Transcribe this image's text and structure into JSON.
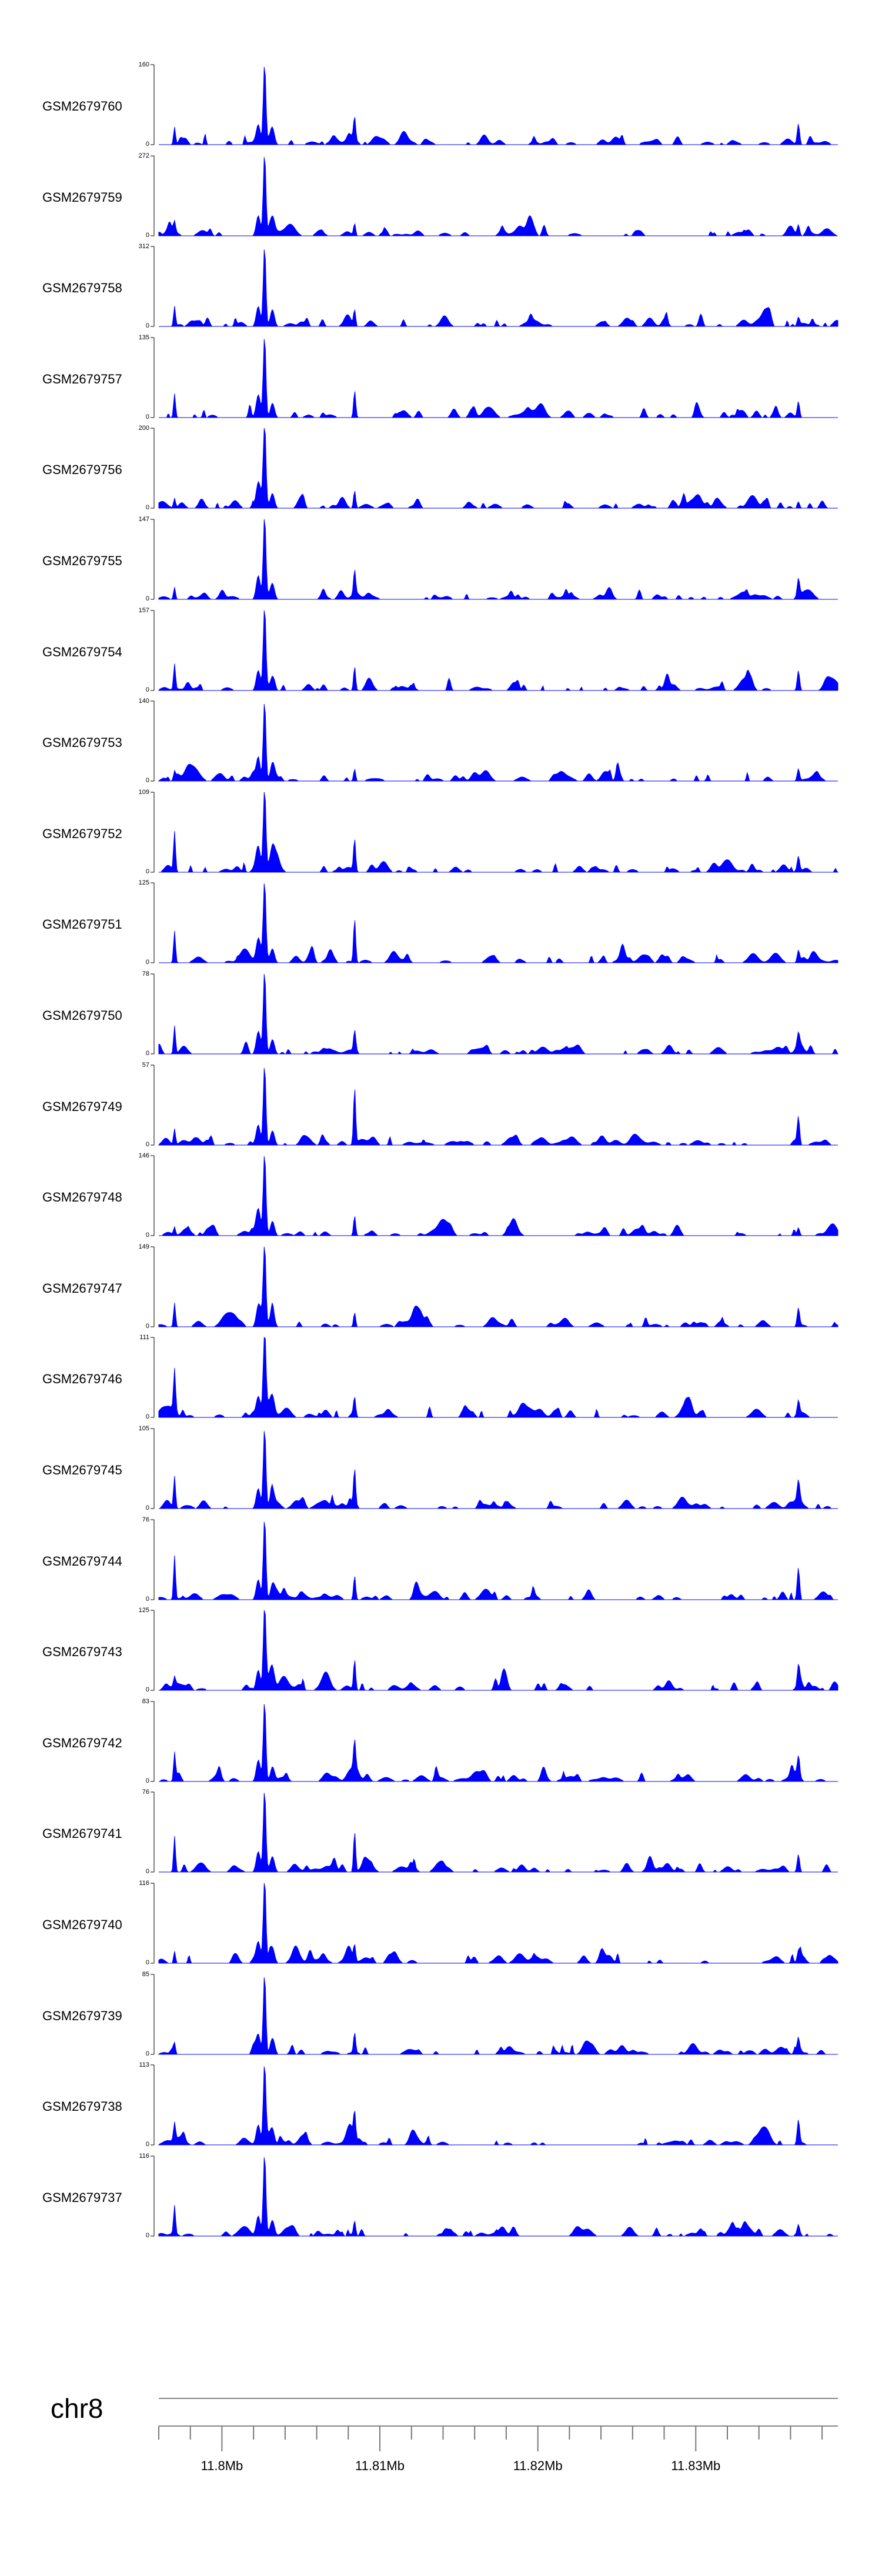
{
  "chart_data": {
    "type": "area",
    "chromosome": "chr8",
    "x_range_mb": [
      11.796,
      11.839
    ],
    "x_ticks": [
      {
        "pos": 11.8,
        "label": "11.8Mb"
      },
      {
        "pos": 11.81,
        "label": "11.81Mb"
      },
      {
        "pos": 11.82,
        "label": "11.82Mb"
      },
      {
        "pos": 11.83,
        "label": "11.83Mb"
      }
    ],
    "minor_tick_step_mb": 0.002,
    "color": "#0000ff",
    "peaks_mb": {
      "main": 11.8027,
      "secondary": 11.8084,
      "left": 11.797,
      "right": 11.8365
    },
    "tracks": [
      {
        "name": "GSM2679760",
        "ymax": 160,
        "ymin": 0,
        "peaks": {
          "main": 1.0,
          "secondary": 0.28,
          "left": 0.22,
          "right": 0.26
        },
        "seed": 11
      },
      {
        "name": "GSM2679759",
        "ymax": 272,
        "ymin": 0,
        "peaks": {
          "main": 1.0,
          "secondary": 0.15,
          "left": 0.12,
          "right": 0.13
        },
        "seed": 12
      },
      {
        "name": "GSM2679758",
        "ymax": 312,
        "ymin": 0,
        "peaks": {
          "main": 1.0,
          "secondary": 0.2,
          "left": 0.25,
          "right": 0.1
        },
        "seed": 13
      },
      {
        "name": "GSM2679757",
        "ymax": 135,
        "ymin": 0,
        "peaks": {
          "main": 1.0,
          "secondary": 0.32,
          "left": 0.3,
          "right": 0.2
        },
        "seed": 14
      },
      {
        "name": "GSM2679756",
        "ymax": 200,
        "ymin": 0,
        "peaks": {
          "main": 1.0,
          "secondary": 0.22,
          "left": 0.12,
          "right": 0.08
        },
        "seed": 15
      },
      {
        "name": "GSM2679755",
        "ymax": 147,
        "ymin": 0,
        "peaks": {
          "main": 1.0,
          "secondary": 0.3,
          "left": 0.15,
          "right": 0.22
        },
        "seed": 16
      },
      {
        "name": "GSM2679754",
        "ymax": 157,
        "ymin": 0,
        "peaks": {
          "main": 1.0,
          "secondary": 0.3,
          "left": 0.32,
          "right": 0.25
        },
        "seed": 17
      },
      {
        "name": "GSM2679753",
        "ymax": 140,
        "ymin": 0,
        "peaks": {
          "main": 1.0,
          "secondary": 0.15,
          "left": 0.1,
          "right": 0.15
        },
        "seed": 18
      },
      {
        "name": "GSM2679752",
        "ymax": 109,
        "ymin": 0,
        "peaks": {
          "main": 1.0,
          "secondary": 0.4,
          "left": 0.5,
          "right": 0.18
        },
        "seed": 19
      },
      {
        "name": "GSM2679751",
        "ymax": 125,
        "ymin": 0,
        "peaks": {
          "main": 0.95,
          "secondary": 0.55,
          "left": 0.4,
          "right": 0.15
        },
        "seed": 20
      },
      {
        "name": "GSM2679750",
        "ymax": 78,
        "ymin": 0,
        "peaks": {
          "main": 1.0,
          "secondary": 0.25,
          "left": 0.35,
          "right": 0.15
        },
        "seed": 21
      },
      {
        "name": "GSM2679749",
        "ymax": 57,
        "ymin": 0,
        "peaks": {
          "main": 1.0,
          "secondary": 0.7,
          "left": 0.2,
          "right": 0.35
        },
        "seed": 22
      },
      {
        "name": "GSM2679748",
        "ymax": 146,
        "ymin": 0,
        "peaks": {
          "main": 1.0,
          "secondary": 0.25,
          "left": 0.1,
          "right": 0.1
        },
        "seed": 23
      },
      {
        "name": "GSM2679747",
        "ymax": 149,
        "ymin": 0,
        "peaks": {
          "main": 1.0,
          "secondary": 0.18,
          "left": 0.3,
          "right": 0.22
        },
        "seed": 24
      },
      {
        "name": "GSM2679746",
        "ymax": 111,
        "ymin": 0,
        "peaks": {
          "main": 1.0,
          "secondary": 0.22,
          "left": 0.48,
          "right": 0.18
        },
        "seed": 25
      },
      {
        "name": "GSM2679745",
        "ymax": 105,
        "ymin": 0,
        "peaks": {
          "main": 1.0,
          "secondary": 0.45,
          "left": 0.4,
          "right": 0.25
        },
        "seed": 26
      },
      {
        "name": "GSM2679744",
        "ymax": 76,
        "ymin": 0,
        "peaks": {
          "main": 1.0,
          "secondary": 0.3,
          "left": 0.55,
          "right": 0.4
        },
        "seed": 27
      },
      {
        "name": "GSM2679743",
        "ymax": 125,
        "ymin": 0,
        "peaks": {
          "main": 1.0,
          "secondary": 0.38,
          "left": 0.1,
          "right": 0.25
        },
        "seed": 28
      },
      {
        "name": "GSM2679742",
        "ymax": 83,
        "ymin": 0,
        "peaks": {
          "main": 1.0,
          "secondary": 0.35,
          "left": 0.35,
          "right": 0.2
        },
        "seed": 29
      },
      {
        "name": "GSM2679741",
        "ymax": 76,
        "ymin": 0,
        "peaks": {
          "main": 1.0,
          "secondary": 0.5,
          "left": 0.45,
          "right": 0.22
        },
        "seed": 30
      },
      {
        "name": "GSM2679740",
        "ymax": 116,
        "ymin": 0,
        "peaks": {
          "main": 1.0,
          "secondary": 0.2,
          "left": 0.15,
          "right": 0.12
        },
        "seed": 31
      },
      {
        "name": "GSM2679739",
        "ymax": 85,
        "ymin": 0,
        "peaks": {
          "main": 1.0,
          "secondary": 0.25,
          "left": 0.12,
          "right": 0.2
        },
        "seed": 32
      },
      {
        "name": "GSM2679738",
        "ymax": 113,
        "ymin": 0,
        "peaks": {
          "main": 1.0,
          "secondary": 0.35,
          "left": 0.2,
          "right": 0.3
        },
        "seed": 33
      },
      {
        "name": "GSM2679737",
        "ymax": 116,
        "ymin": 0,
        "peaks": {
          "main": 1.0,
          "secondary": 0.18,
          "left": 0.35,
          "right": 0.12
        },
        "seed": 34
      }
    ]
  }
}
